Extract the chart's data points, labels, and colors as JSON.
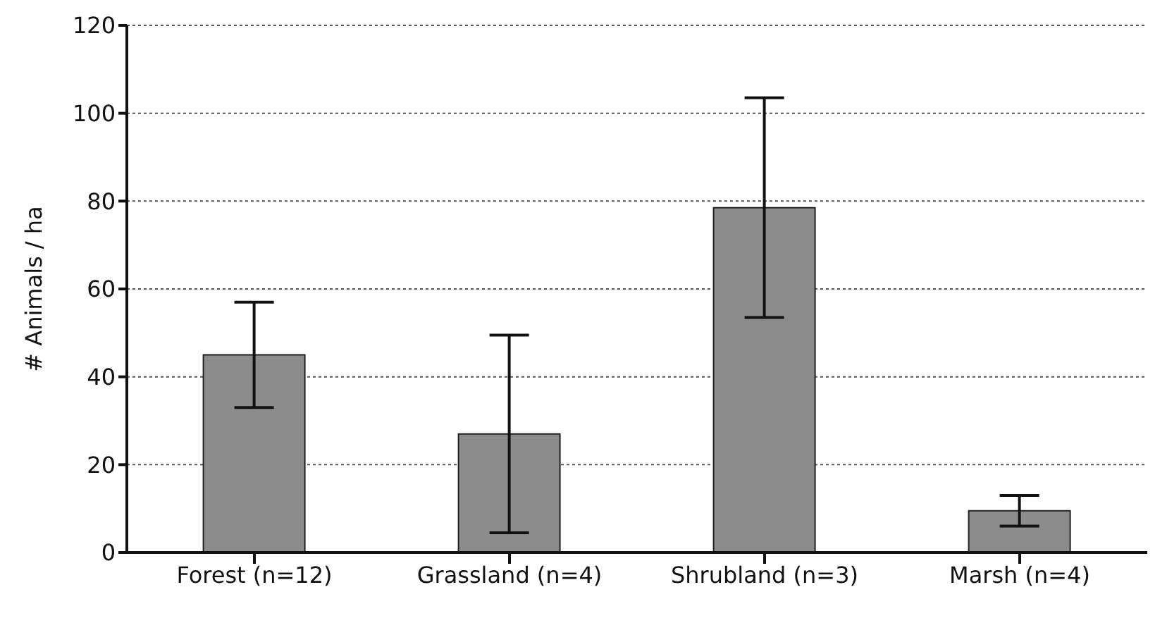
{
  "chart_data": {
    "type": "bar",
    "ylabel": "# Animals / ha",
    "categories": [
      "Forest (n=12)",
      "Grassland (n=4)",
      "Shrubland (n=3)",
      "Marsh (n=4)"
    ],
    "values": [
      45,
      27,
      78.5,
      9.5
    ],
    "errors": [
      12,
      22.5,
      25,
      3.5
    ],
    "color": "#8c8c8c",
    "ylim": [
      0,
      120
    ],
    "yticks": [
      0,
      20,
      40,
      60,
      80,
      100,
      120
    ],
    "grid": "y",
    "legend": false
  }
}
